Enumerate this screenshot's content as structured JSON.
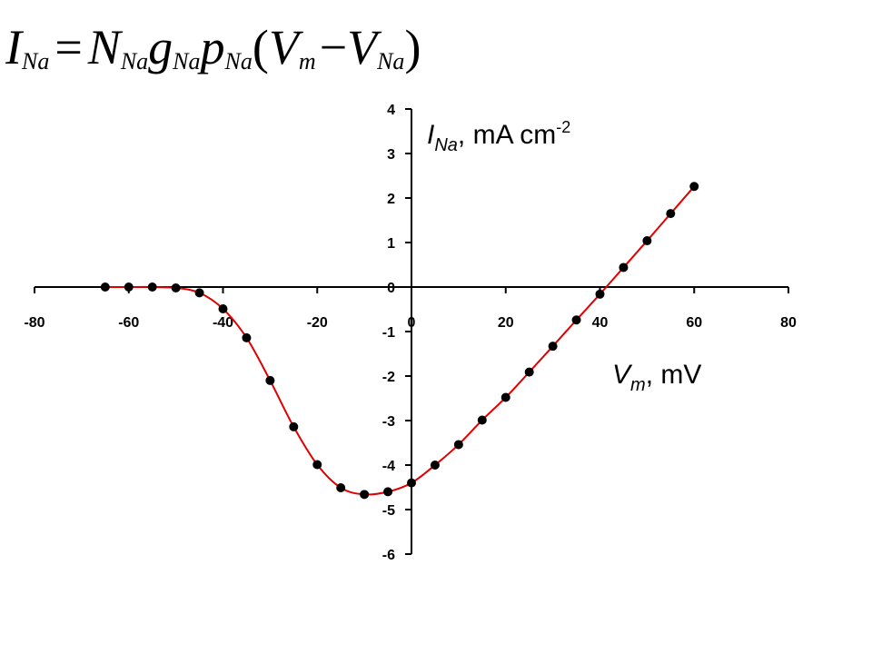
{
  "equation": {
    "lhs": "I",
    "lhs_sub": "Na",
    "equals": "=",
    "n": "N",
    "n_sub": "Na",
    "g": "g",
    "g_sub": "Na",
    "p": "p",
    "p_sub": "Na",
    "open_paren": "(",
    "v1": "V",
    "v1_sub": "m",
    "minus": "−",
    "v2": "V",
    "v2_sub": "Na",
    "close_paren": ")"
  },
  "chart_data": {
    "type": "scatter",
    "xlabel": {
      "main": "V",
      "sub": "m",
      "rest": ", mV"
    },
    "ylabel": {
      "main": "I",
      "sub": "Na",
      "rest": ", mA cm",
      "sup": "-2"
    },
    "xlim": [
      -80,
      80
    ],
    "ylim": [
      -6,
      4
    ],
    "xticks": [
      -80,
      -60,
      -40,
      -20,
      0,
      20,
      40,
      60,
      80
    ],
    "yticks": [
      4,
      3,
      2,
      1,
      0,
      -1,
      -2,
      -3,
      -4,
      -5,
      -6
    ],
    "xtick_labels": [
      "-80",
      "-60",
      "-40",
      "-20",
      "0",
      "20",
      "40",
      "60",
      "80"
    ],
    "ytick_labels": [
      "4",
      "3",
      "2",
      "1",
      "0",
      "-1",
      "-2",
      "-3",
      "-4",
      "-5",
      "-6"
    ],
    "grid": false,
    "line_color": "#e00000",
    "marker_color": "#000000",
    "series": [
      {
        "x": [
          -65,
          -60,
          -55,
          -50,
          -45,
          -40,
          -35,
          -30,
          -25,
          -20,
          -15,
          -10,
          -5,
          0,
          5,
          10,
          15,
          20,
          25,
          30,
          35,
          40,
          45,
          50,
          55,
          60
        ],
        "y": [
          0.0,
          0.0,
          0.0,
          -0.02,
          -0.13,
          -0.49,
          -1.14,
          -2.1,
          -3.14,
          -3.99,
          -4.51,
          -4.66,
          -4.6,
          -4.4,
          -4.0,
          -3.54,
          -2.99,
          -2.48,
          -1.91,
          -1.33,
          -0.74,
          -0.16,
          0.44,
          1.04,
          1.65,
          2.26
        ]
      }
    ]
  }
}
